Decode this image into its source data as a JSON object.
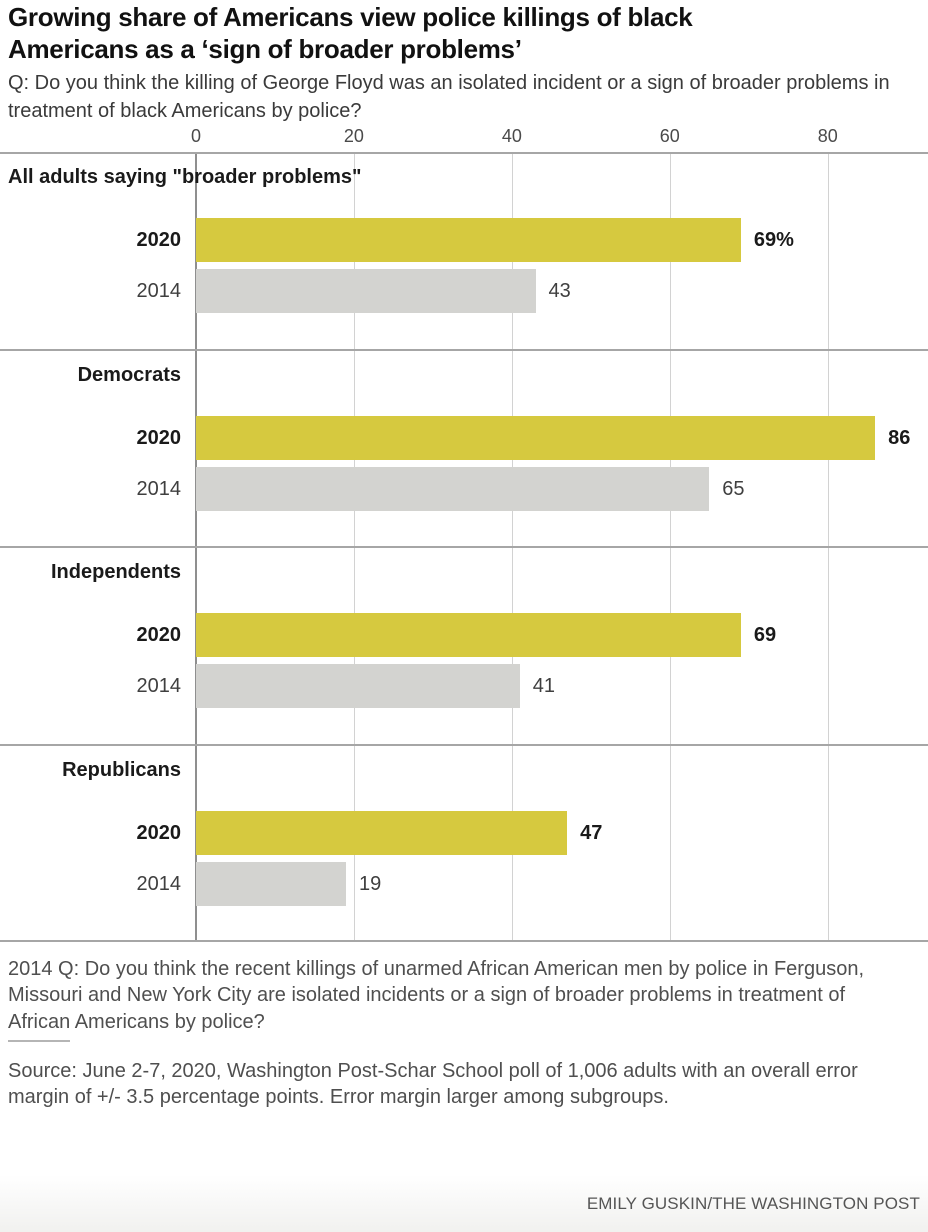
{
  "header": {
    "title": "Growing share of Americans view police killings of black Americans as a ‘sign of broader problems’",
    "question": "Q: Do you think the killing of George Floyd was an isolated incident or a sign of broader problems in treatment of black Americans by police?"
  },
  "chart_data": {
    "type": "bar",
    "orientation": "horizontal",
    "title": "Growing share of Americans view police killings of black Americans as a ‘sign of broader problems’",
    "x_ticks": [
      0,
      20,
      40,
      60,
      80
    ],
    "x_range": [
      0,
      92.7
    ],
    "grid": true,
    "legend_position": "none",
    "series": [
      "2020",
      "2014"
    ],
    "colors": {
      "2020": "#d6c93f",
      "2014": "#d3d3d0"
    },
    "groups": [
      {
        "label": "All adults saying \"broader problems\"",
        "bars": [
          {
            "series": "2020",
            "value": 69,
            "display": "69%"
          },
          {
            "series": "2014",
            "value": 43,
            "display": "43"
          }
        ]
      },
      {
        "label": "Democrats",
        "bars": [
          {
            "series": "2020",
            "value": 86,
            "display": "86"
          },
          {
            "series": "2014",
            "value": 65,
            "display": "65"
          }
        ]
      },
      {
        "label": "Independents",
        "bars": [
          {
            "series": "2020",
            "value": 69,
            "display": "69"
          },
          {
            "series": "2014",
            "value": 41,
            "display": "41"
          }
        ]
      },
      {
        "label": "Republicans",
        "bars": [
          {
            "series": "2020",
            "value": 47,
            "display": "47"
          },
          {
            "series": "2014",
            "value": 19,
            "display": "19"
          }
        ]
      }
    ]
  },
  "footnotes": {
    "note_2014": "2014 Q: Do you think the recent killings of unarmed African American men by police in Ferguson, Missouri and New York City are isolated incidents or a sign of broader problems in treatment of African Americans by police?",
    "source": "Source: June 2-7, 2020, Washington Post-Schar School poll of 1,006 adults with an overall error margin of +/- 3.5 percentage points. Error margin larger among subgroups.",
    "credit": "EMILY GUSKIN/THE WASHINGTON POST"
  }
}
